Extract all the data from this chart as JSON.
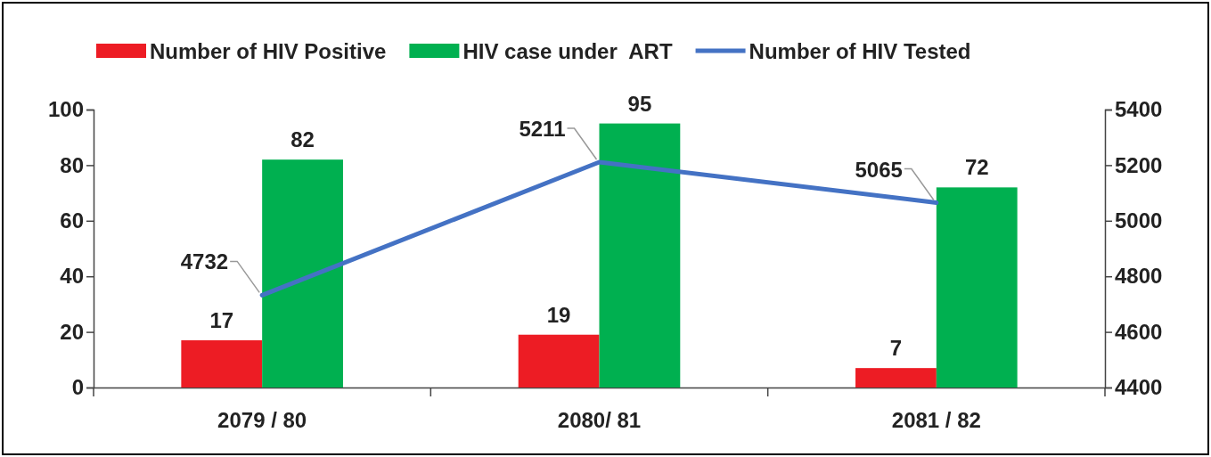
{
  "chart_data": {
    "type": "bar",
    "categories": [
      "2079 / 80",
      "2080/ 81",
      "2081 / 82"
    ],
    "series": [
      {
        "name": "Number of HIV Positive",
        "color": "#ed1c24",
        "values": [
          17,
          19,
          7
        ]
      },
      {
        "name": "HIV case under  ART",
        "color": "#00b050",
        "values": [
          82,
          95,
          72
        ]
      },
      {
        "name": "Number of HIV Tested",
        "color": "#4472c4",
        "type": "line",
        "axis": "y2",
        "values": [
          4732,
          5211,
          5065
        ]
      }
    ],
    "ylim": [
      0,
      100
    ],
    "yticks": [
      0,
      20,
      40,
      60,
      80,
      100
    ],
    "y2lim": [
      4400,
      5400
    ],
    "y2ticks": [
      4400,
      4600,
      4800,
      5000,
      5200,
      5400
    ],
    "data_labels": true,
    "legend": "top",
    "grid": false,
    "marker": "none",
    "line_style": "solid"
  }
}
